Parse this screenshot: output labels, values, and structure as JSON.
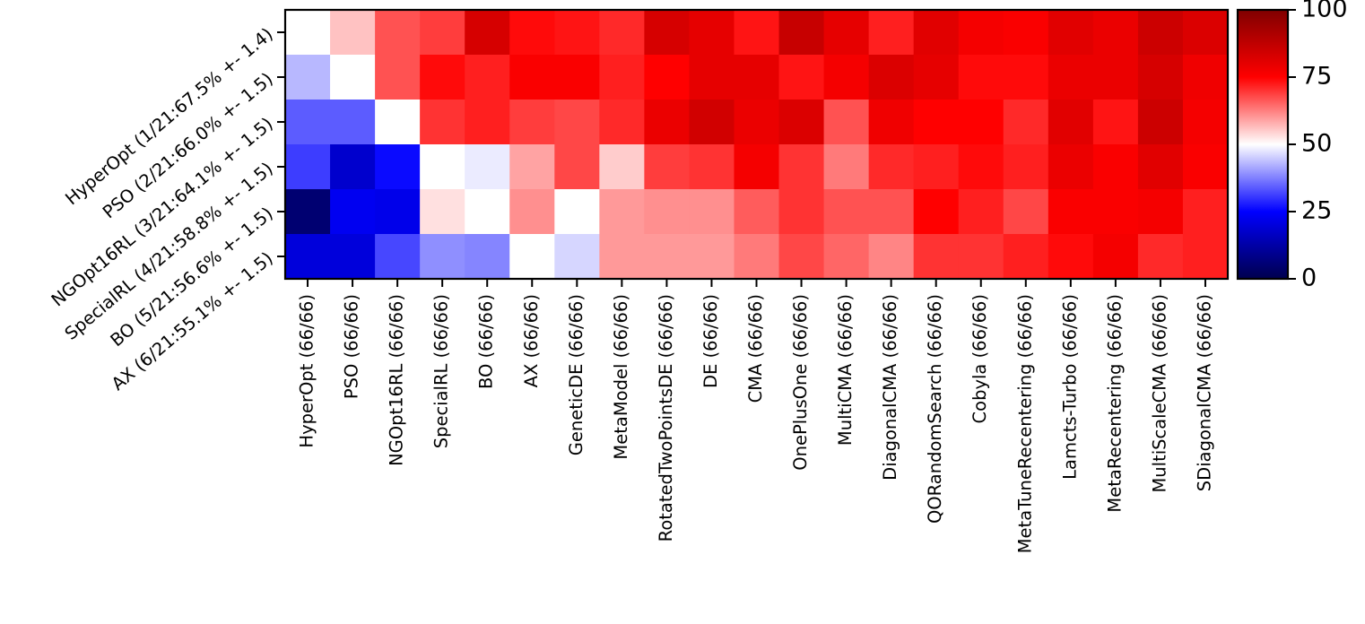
{
  "chart_data": {
    "type": "heatmap",
    "title": "",
    "xlabel": "",
    "ylabel": "",
    "row_labels": [
      "HyperOpt (1/21:67.5% +- 1.4)",
      "PSO (2/21:66.0% +- 1.5)",
      "NGOpt16RL (3/21:64.1% +- 1.5)",
      "SpecialRL (4/21:58.8% +- 1.5)",
      "BO (5/21:56.6% +- 1.5)",
      "AX (6/21:55.1% +- 1.5)"
    ],
    "col_labels": [
      "HyperOpt (66/66)",
      "PSO (66/66)",
      "NGOpt16RL (66/66)",
      "SpecialRL (66/66)",
      "BO (66/66)",
      "AX (66/66)",
      "GeneticDE (66/66)",
      "MetaModel (66/66)",
      "RotatedTwoPointsDE (66/66)",
      "DE (66/66)",
      "CMA (66/66)",
      "OnePlusOne (66/66)",
      "MultiCMA (66/66)",
      "DiagonalCMA (66/66)",
      "QORandomSearch (66/66)",
      "Cobyla (66/66)",
      "MetaTuneRecentering (66/66)",
      "Lamcts-Turbo (66/66)",
      "MetaRecentering (66/66)",
      "MultiScaleCMA (66/66)",
      "SDiagonalCMA (66/66)"
    ],
    "values": [
      [
        50,
        56,
        67,
        69,
        83,
        74,
        73,
        71,
        83,
        80,
        73,
        86,
        80,
        72,
        81,
        77,
        76,
        81,
        79,
        85,
        82
      ],
      [
        43,
        50,
        67,
        74,
        72,
        76,
        76,
        72,
        75,
        80,
        80,
        73,
        77,
        82,
        80,
        74,
        74,
        79,
        79,
        83,
        78
      ],
      [
        34,
        34,
        50,
        70,
        72,
        69,
        68,
        71,
        79,
        84,
        79,
        82,
        67,
        78,
        75,
        75,
        71,
        81,
        73,
        85,
        77
      ],
      [
        31,
        18,
        26,
        50,
        48,
        59,
        68,
        55,
        69,
        70,
        77,
        70,
        63,
        71,
        72,
        74,
        72,
        79,
        76,
        81,
        76
      ],
      [
        5,
        23,
        22,
        53,
        50,
        61,
        50,
        60,
        61,
        61,
        66,
        70,
        67,
        67,
        75,
        72,
        68,
        76,
        76,
        77,
        72
      ],
      [
        20,
        20,
        32,
        39,
        38,
        50,
        46,
        60,
        60,
        60,
        63,
        68,
        65,
        62,
        70,
        70,
        72,
        74,
        77,
        71,
        72
      ]
    ],
    "colormap": "seismic",
    "vmin": 0,
    "vmax": 100,
    "colorbar": {
      "ticks": [
        0,
        25,
        50,
        75,
        100
      ],
      "tick_labels": [
        "0",
        "25",
        "50",
        "75",
        "100"
      ]
    }
  }
}
